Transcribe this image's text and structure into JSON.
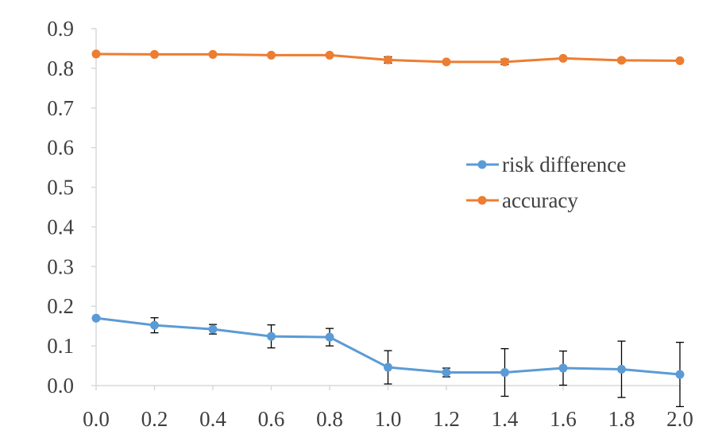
{
  "chart_data": {
    "type": "line",
    "title": "",
    "xlabel": "",
    "ylabel": "",
    "x": [
      0.0,
      0.2,
      0.4,
      0.6,
      0.8,
      1.0,
      1.2,
      1.4,
      1.6,
      1.8,
      2.0
    ],
    "x_tick_labels": [
      "0.0",
      "0.2",
      "0.4",
      "0.6",
      "0.8",
      "1.0",
      "1.2",
      "1.4",
      "1.6",
      "1.8",
      "2.0"
    ],
    "xlim": [
      0.0,
      2.0
    ],
    "ylim": [
      0.0,
      0.9
    ],
    "y_ticks": [
      0.0,
      0.1,
      0.2,
      0.3,
      0.4,
      0.5,
      0.6,
      0.7,
      0.8,
      0.9
    ],
    "y_tick_labels": [
      "0.0",
      "0.1",
      "0.2",
      "0.3",
      "0.4",
      "0.5",
      "0.6",
      "0.7",
      "0.8",
      "0.9"
    ],
    "grid": false,
    "legend_position": "center-right",
    "series": [
      {
        "name": "risk difference",
        "color": "#5B9BD5",
        "values": [
          0.17,
          0.152,
          0.142,
          0.124,
          0.122,
          0.046,
          0.033,
          0.033,
          0.044,
          0.041,
          0.028
        ],
        "error": [
          0.0,
          0.019,
          0.012,
          0.029,
          0.022,
          0.042,
          0.011,
          0.06,
          0.043,
          0.071,
          0.081
        ]
      },
      {
        "name": "accuracy",
        "color": "#ED7D31",
        "values": [
          0.836,
          0.835,
          0.835,
          0.833,
          0.833,
          0.821,
          0.816,
          0.816,
          0.825,
          0.82,
          0.819
        ],
        "error": [
          0.0,
          0.0,
          0.0,
          0.0,
          0.0,
          0.008,
          0.0,
          0.007,
          0.0,
          0.005,
          0.0
        ]
      }
    ],
    "axis_color": "#D9D9D9",
    "error_bar_color": "#000000"
  }
}
